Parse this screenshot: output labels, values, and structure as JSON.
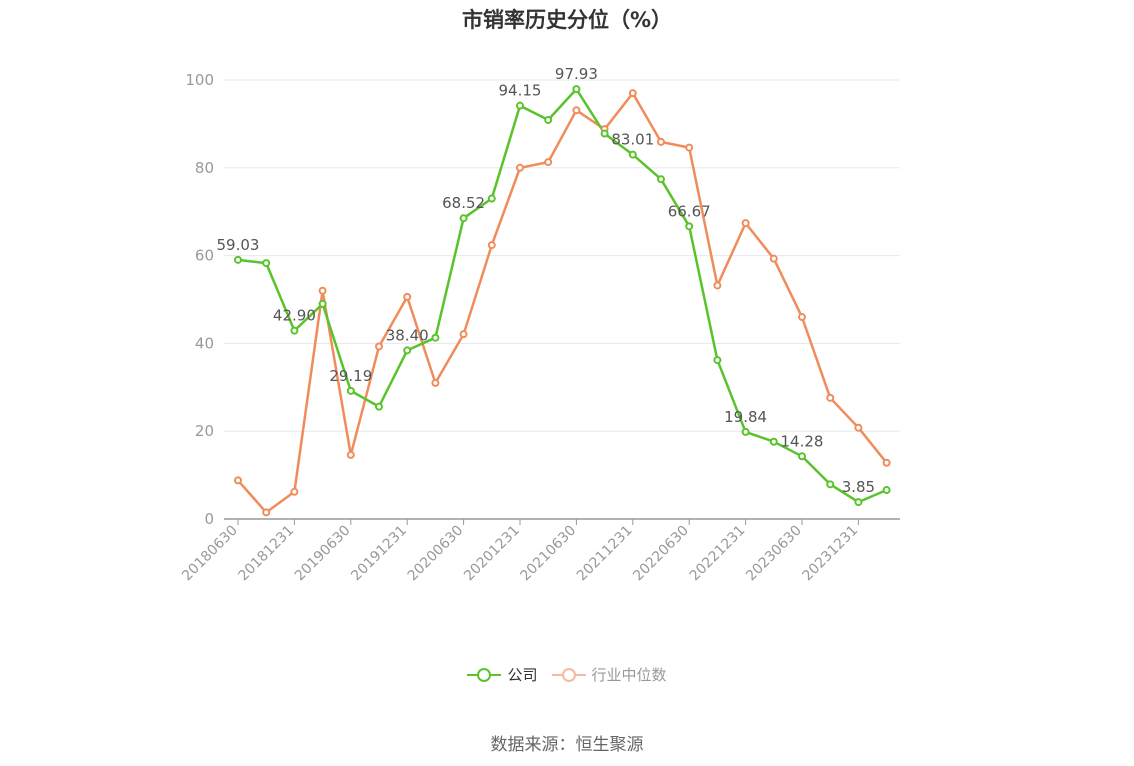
{
  "chart_data": {
    "type": "line",
    "title": "市销率历史分位（%）",
    "ylim": [
      0,
      100
    ],
    "y_ticks": [
      0,
      20,
      40,
      60,
      80,
      100
    ],
    "x": [
      "20180630",
      "20180930",
      "20181231",
      "20190331",
      "20190630",
      "20190930",
      "20191231",
      "20200331",
      "20200630",
      "20200930",
      "20201231",
      "20210331",
      "20210630",
      "20210930",
      "20211231",
      "20220331",
      "20220630",
      "20220930",
      "20221231",
      "20230331",
      "20230630",
      "20230930",
      "20231231",
      "20240331"
    ],
    "x_tick_labels": [
      "20180630",
      "20181231",
      "20190630",
      "20191231",
      "20200630",
      "20201231",
      "20210630",
      "20211231",
      "20220630",
      "20221231",
      "20230630",
      "20231231"
    ],
    "grid": true,
    "legend_position": "bottom",
    "series": [
      {
        "name": "公司",
        "color": "#5ac32b",
        "values": [
          59.03,
          58.3,
          42.9,
          49.0,
          29.19,
          25.6,
          38.4,
          41.3,
          68.52,
          73.0,
          94.15,
          90.9,
          97.93,
          87.8,
          83.01,
          77.4,
          66.67,
          36.2,
          19.84,
          17.6,
          14.28,
          7.9,
          3.85,
          6.6
        ],
        "labels": {
          "0": "59.03",
          "2": "42.90",
          "4": "29.19",
          "6": "38.40",
          "8": "68.52",
          "10": "94.15",
          "12": "97.93",
          "14": "83.01",
          "16": "66.67",
          "18": "19.84",
          "20": "14.28",
          "22": "3.85"
        }
      },
      {
        "name": "行业中位数",
        "color": "#f08c5c",
        "values": [
          8.8,
          1.5,
          6.2,
          52.0,
          14.6,
          39.3,
          50.6,
          31.0,
          42.1,
          62.4,
          80.0,
          81.3,
          93.1,
          88.8,
          97.0,
          85.9,
          84.6,
          53.2,
          67.4,
          59.3,
          46.0,
          27.6,
          20.8,
          12.8
        ]
      }
    ]
  },
  "legend": {
    "company": "公司",
    "industry": "行业中位数",
    "company_color": "#5ac32b",
    "industry_color": "#f9b9a0"
  },
  "source": "数据来源：恒生聚源"
}
